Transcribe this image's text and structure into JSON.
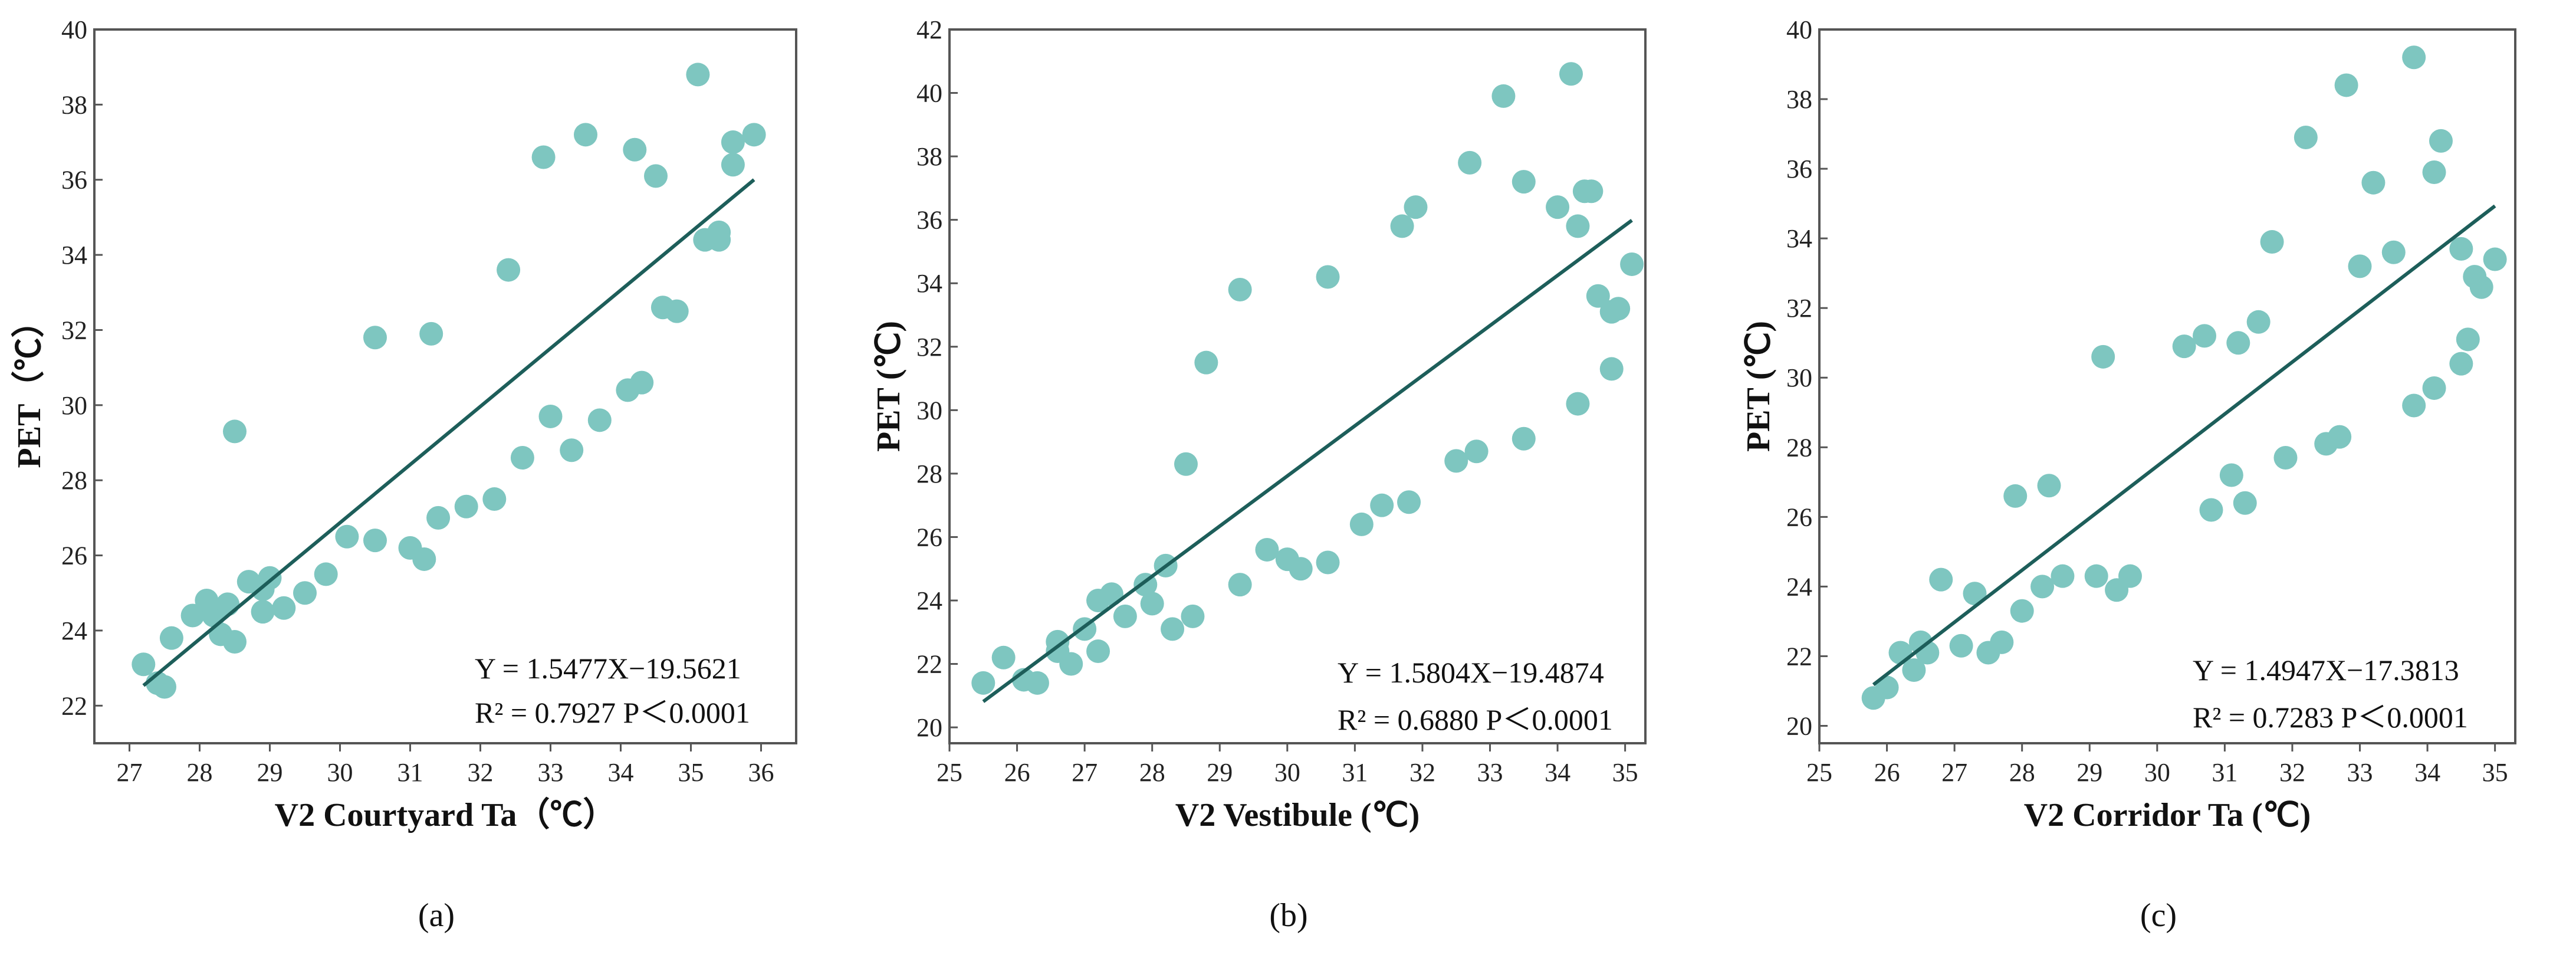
{
  "chart_data": [
    {
      "type": "scatter",
      "panel_label": "(a)",
      "xlabel": "V2 Courtyard Ta（℃）",
      "ylabel": "PET（℃）",
      "xlim": [
        26.5,
        36.5
      ],
      "ylim": [
        21,
        40
      ],
      "xticks": [
        27,
        28,
        29,
        30,
        31,
        32,
        33,
        34,
        35,
        36
      ],
      "yticks": [
        22,
        24,
        26,
        28,
        30,
        32,
        34,
        36,
        38,
        40
      ],
      "equation": "Y = 1.5477X−19.5621",
      "stats": "R² = 0.7927  P＜0.0001",
      "fit": {
        "slope": 1.5477,
        "intercept": -19.5621,
        "x_range": [
          27.2,
          35.9
        ]
      },
      "points": [
        [
          27.2,
          23.1
        ],
        [
          27.4,
          22.6
        ],
        [
          27.5,
          22.5
        ],
        [
          27.6,
          23.8
        ],
        [
          27.9,
          24.4
        ],
        [
          28.1,
          24.8
        ],
        [
          28.2,
          24.4
        ],
        [
          28.3,
          23.9
        ],
        [
          28.4,
          24.7
        ],
        [
          28.5,
          23.7
        ],
        [
          28.5,
          29.3
        ],
        [
          28.7,
          25.3
        ],
        [
          28.9,
          25.1
        ],
        [
          28.9,
          24.5
        ],
        [
          29.0,
          25.4
        ],
        [
          29.2,
          24.6
        ],
        [
          29.5,
          25.0
        ],
        [
          29.8,
          25.5
        ],
        [
          30.1,
          26.5
        ],
        [
          30.5,
          26.4
        ],
        [
          30.5,
          31.8
        ],
        [
          31.0,
          26.2
        ],
        [
          31.2,
          25.9
        ],
        [
          31.3,
          31.9
        ],
        [
          31.4,
          27.0
        ],
        [
          31.8,
          27.3
        ],
        [
          32.2,
          27.5
        ],
        [
          32.4,
          33.6
        ],
        [
          32.6,
          28.6
        ],
        [
          32.9,
          36.6
        ],
        [
          33.0,
          29.7
        ],
        [
          33.3,
          28.8
        ],
        [
          33.5,
          37.2
        ],
        [
          33.7,
          29.6
        ],
        [
          34.1,
          30.4
        ],
        [
          34.2,
          36.8
        ],
        [
          34.3,
          30.6
        ],
        [
          34.5,
          36.1
        ],
        [
          34.6,
          32.6
        ],
        [
          34.8,
          32.5
        ],
        [
          35.1,
          38.8
        ],
        [
          35.2,
          34.4
        ],
        [
          35.4,
          34.4
        ],
        [
          35.4,
          34.6
        ],
        [
          35.6,
          37.0
        ],
        [
          35.6,
          36.4
        ],
        [
          35.9,
          37.2
        ]
      ]
    },
    {
      "type": "scatter",
      "panel_label": "(b)",
      "xlabel": "V2 Vestibule (℃)",
      "ylabel": "PET (℃)",
      "xlim": [
        25,
        35.3
      ],
      "ylim": [
        19.5,
        42
      ],
      "xticks": [
        25,
        26,
        27,
        28,
        29,
        30,
        31,
        32,
        33,
        34,
        35
      ],
      "yticks": [
        20,
        22,
        24,
        26,
        28,
        30,
        32,
        34,
        36,
        38,
        40,
        42
      ],
      "equation": "Y = 1.5804X−19.4874",
      "stats": "R² = 0.6880  P＜0.0001",
      "fit": {
        "slope": 1.5804,
        "intercept": -19.4874,
        "x_range": [
          25.5,
          35.1
        ]
      },
      "points": [
        [
          25.5,
          21.4
        ],
        [
          25.8,
          22.2
        ],
        [
          26.1,
          21.5
        ],
        [
          26.3,
          21.4
        ],
        [
          26.6,
          22.4
        ],
        [
          26.6,
          22.7
        ],
        [
          26.8,
          22.0
        ],
        [
          27.0,
          23.1
        ],
        [
          27.2,
          22.4
        ],
        [
          27.2,
          24.0
        ],
        [
          27.4,
          24.2
        ],
        [
          27.6,
          23.5
        ],
        [
          27.9,
          24.5
        ],
        [
          28.0,
          23.9
        ],
        [
          28.2,
          25.1
        ],
        [
          28.3,
          23.1
        ],
        [
          28.5,
          28.3
        ],
        [
          28.6,
          23.5
        ],
        [
          28.8,
          31.5
        ],
        [
          29.3,
          24.5
        ],
        [
          29.3,
          33.8
        ],
        [
          29.7,
          25.6
        ],
        [
          30.0,
          25.3
        ],
        [
          30.2,
          25.0
        ],
        [
          30.6,
          25.2
        ],
        [
          30.6,
          34.2
        ],
        [
          31.1,
          26.4
        ],
        [
          31.4,
          27.0
        ],
        [
          31.7,
          35.8
        ],
        [
          31.8,
          27.1
        ],
        [
          31.9,
          36.4
        ],
        [
          32.5,
          28.4
        ],
        [
          32.7,
          37.8
        ],
        [
          32.8,
          28.7
        ],
        [
          33.2,
          39.9
        ],
        [
          33.5,
          29.1
        ],
        [
          33.5,
          37.2
        ],
        [
          34.0,
          36.4
        ],
        [
          34.2,
          40.6
        ],
        [
          34.3,
          35.8
        ],
        [
          34.3,
          30.2
        ],
        [
          34.4,
          36.9
        ],
        [
          34.5,
          36.9
        ],
        [
          34.6,
          33.6
        ],
        [
          34.8,
          31.3
        ],
        [
          34.8,
          33.1
        ],
        [
          34.9,
          33.2
        ],
        [
          35.1,
          34.6
        ]
      ]
    },
    {
      "type": "scatter",
      "panel_label": "(c)",
      "xlabel": "V2 Corridor Ta (℃)",
      "ylabel": "PET (℃)",
      "xlim": [
        25,
        35.3
      ],
      "ylim": [
        19.5,
        40
      ],
      "xticks": [
        25,
        26,
        27,
        28,
        29,
        30,
        31,
        32,
        33,
        34,
        35
      ],
      "yticks": [
        20,
        22,
        24,
        26,
        28,
        30,
        32,
        34,
        36,
        38,
        40
      ],
      "equation": "Y = 1.4947X−17.3813",
      "stats": "R² = 0.7283  P＜0.0001",
      "fit": {
        "slope": 1.4947,
        "intercept": -17.3813,
        "x_range": [
          25.8,
          35.0
        ]
      },
      "points": [
        [
          25.8,
          20.8
        ],
        [
          26.0,
          21.1
        ],
        [
          26.2,
          22.1
        ],
        [
          26.4,
          21.6
        ],
        [
          26.5,
          22.4
        ],
        [
          26.6,
          22.1
        ],
        [
          26.8,
          24.2
        ],
        [
          27.1,
          22.3
        ],
        [
          27.3,
          23.8
        ],
        [
          27.5,
          22.1
        ],
        [
          27.7,
          22.4
        ],
        [
          27.9,
          26.6
        ],
        [
          28.0,
          23.3
        ],
        [
          28.3,
          24.0
        ],
        [
          28.4,
          26.9
        ],
        [
          28.6,
          24.3
        ],
        [
          29.1,
          24.3
        ],
        [
          29.2,
          30.6
        ],
        [
          29.4,
          23.9
        ],
        [
          29.6,
          24.3
        ],
        [
          30.4,
          30.9
        ],
        [
          30.7,
          31.2
        ],
        [
          30.8,
          26.2
        ],
        [
          31.1,
          27.2
        ],
        [
          31.2,
          31.0
        ],
        [
          31.3,
          26.4
        ],
        [
          31.5,
          31.6
        ],
        [
          31.7,
          33.9
        ],
        [
          31.9,
          27.7
        ],
        [
          32.2,
          36.9
        ],
        [
          32.5,
          28.1
        ],
        [
          32.7,
          28.3
        ],
        [
          32.8,
          38.4
        ],
        [
          33.0,
          33.2
        ],
        [
          33.2,
          35.6
        ],
        [
          33.5,
          33.6
        ],
        [
          33.8,
          29.2
        ],
        [
          33.8,
          39.2
        ],
        [
          34.1,
          35.9
        ],
        [
          34.1,
          29.7
        ],
        [
          34.2,
          36.8
        ],
        [
          34.5,
          33.7
        ],
        [
          34.5,
          30.4
        ],
        [
          34.6,
          31.1
        ],
        [
          34.7,
          32.9
        ],
        [
          34.8,
          32.6
        ],
        [
          35.0,
          33.4
        ]
      ]
    }
  ]
}
